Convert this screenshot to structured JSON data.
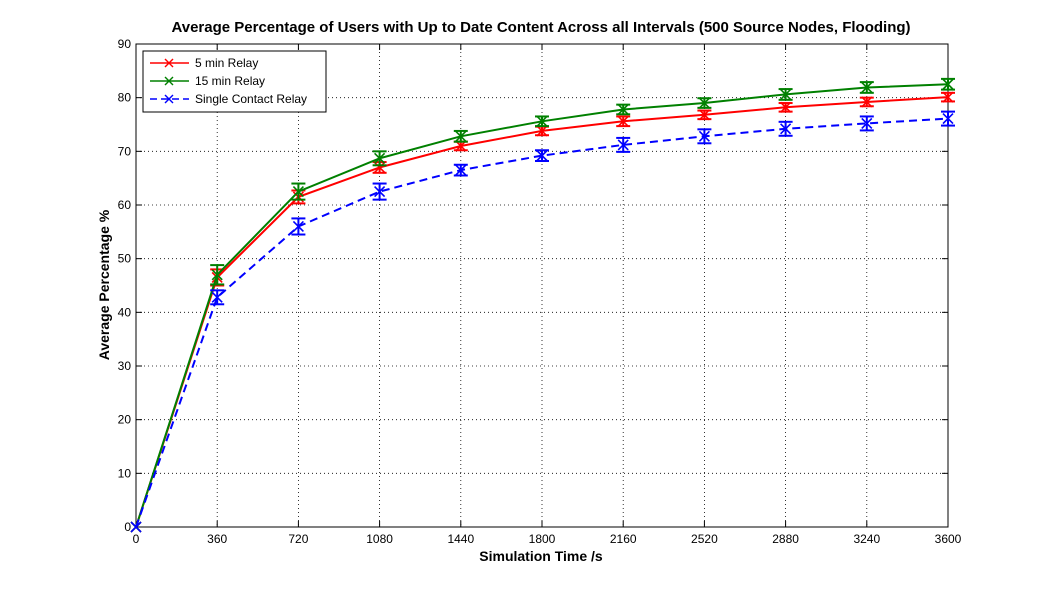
{
  "chart_data": {
    "type": "line",
    "title": "Average Percentage of Users with Up to Date Content Across all Intervals (500 Source Nodes, Flooding)",
    "xlabel": "Simulation Time /s",
    "ylabel": "Average Percentage %",
    "x": [
      0,
      360,
      720,
      1080,
      1440,
      1800,
      2160,
      2520,
      2880,
      3240,
      3600
    ],
    "xlim": [
      0,
      3600
    ],
    "ylim": [
      0,
      90
    ],
    "xticks": [
      0,
      360,
      720,
      1080,
      1440,
      1800,
      2160,
      2520,
      2880,
      3240,
      3600
    ],
    "yticks": [
      0,
      10,
      20,
      30,
      40,
      50,
      60,
      70,
      80,
      90
    ],
    "grid": true,
    "legend_position": "top-left",
    "series": [
      {
        "name": "5 min Relay",
        "color": "#ff0000",
        "dash": "solid",
        "marker": "x",
        "values": [
          0,
          46.5,
          61.5,
          67.0,
          71.0,
          73.8,
          75.6,
          76.8,
          78.2,
          79.2,
          80.1
        ],
        "errors": [
          0,
          1.5,
          1.2,
          1.0,
          0.8,
          0.8,
          0.9,
          0.8,
          0.8,
          0.8,
          0.8
        ]
      },
      {
        "name": "15 min Relay",
        "color": "#008000",
        "dash": "solid",
        "marker": "x",
        "values": [
          0,
          47.0,
          62.5,
          68.7,
          72.8,
          75.6,
          77.8,
          79.0,
          80.6,
          81.9,
          82.5
        ],
        "errors": [
          0,
          1.8,
          1.5,
          1.3,
          1.0,
          0.9,
          0.9,
          0.9,
          1.0,
          1.0,
          1.0
        ]
      },
      {
        "name": "Single Contact Relay",
        "color": "#0000ff",
        "dash": "dashed",
        "marker": "x",
        "values": [
          0,
          42.8,
          56.0,
          62.5,
          66.5,
          69.2,
          71.2,
          72.8,
          74.2,
          75.2,
          76.1
        ],
        "errors": [
          0,
          1.3,
          1.5,
          1.5,
          1.0,
          1.0,
          1.3,
          1.3,
          1.3,
          1.3,
          1.3
        ]
      }
    ]
  }
}
